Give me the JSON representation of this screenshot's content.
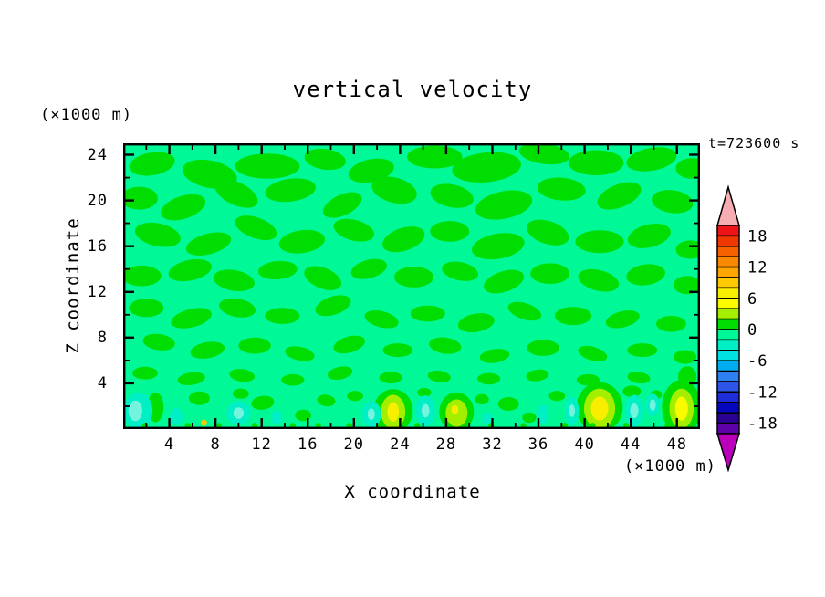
{
  "chart_data": {
    "type": "filled_contour",
    "title": "vertical velocity",
    "time_label": "t=723600 s",
    "xlabel": "X coordinate",
    "ylabel": "Z coordinate",
    "x_unit": "(×1000 m)",
    "y_unit": "(×1000 m)",
    "xlim": [
      0,
      50
    ],
    "ylim": [
      0,
      25
    ],
    "x_ticks_major": [
      4,
      8,
      12,
      16,
      20,
      24,
      28,
      32,
      36,
      40,
      44,
      48
    ],
    "x_ticks_minor": [
      2,
      6,
      10,
      14,
      18,
      22,
      26,
      30,
      34,
      38,
      42,
      46
    ],
    "y_ticks_major": [
      4,
      8,
      12,
      16,
      20,
      24
    ],
    "y_ticks_minor": [
      2,
      6,
      10,
      14,
      18,
      22
    ],
    "contour_interval": 2,
    "colorbar": {
      "labels": [
        "18",
        "12",
        "6",
        "0",
        "-6",
        "-12",
        "-18"
      ],
      "label_boundary_cells": [
        1,
        4,
        7,
        10,
        13,
        16,
        19
      ],
      "over_color": "#F6ACB0",
      "under_color": "#BB00BB",
      "cells_top_to_bottom": [
        {
          "range": [
            18,
            20
          ],
          "color": "#EE1316"
        },
        {
          "range": [
            16,
            18
          ],
          "color": "#F13700"
        },
        {
          "range": [
            14,
            16
          ],
          "color": "#F66100"
        },
        {
          "range": [
            12,
            14
          ],
          "color": "#FB8900"
        },
        {
          "range": [
            10,
            12
          ],
          "color": "#FFA500"
        },
        {
          "range": [
            8,
            10
          ],
          "color": "#FFC900"
        },
        {
          "range": [
            6,
            8
          ],
          "color": "#F8EE00"
        },
        {
          "range": [
            4,
            6
          ],
          "color": "#FBFB00"
        },
        {
          "range": [
            2,
            4
          ],
          "color": "#A4EE00"
        },
        {
          "range": [
            0,
            2
          ],
          "color": "#00DD00"
        },
        {
          "range": [
            -2,
            0
          ],
          "color": "#00F896"
        },
        {
          "range": [
            -4,
            -2
          ],
          "color": "#00EFC4"
        },
        {
          "range": [
            -6,
            -4
          ],
          "color": "#00E2E2"
        },
        {
          "range": [
            -8,
            -6
          ],
          "color": "#00ADF3"
        },
        {
          "range": [
            -10,
            -8
          ],
          "color": "#2E80F0"
        },
        {
          "range": [
            -12,
            -10
          ],
          "color": "#2E55E8"
        },
        {
          "range": [
            -14,
            -12
          ],
          "color": "#1F2CD9"
        },
        {
          "range": [
            -16,
            -14
          ],
          "color": "#0606BF"
        },
        {
          "range": [
            -18,
            -16
          ],
          "color": "#2B0193"
        },
        {
          "range": [
            -20,
            -18
          ],
          "color": "#5D02A9"
        }
      ]
    },
    "notable_features": {
      "background_value_range": [
        -2,
        0
      ],
      "positive_patch_value_range": [
        0,
        2
      ],
      "updraft_cores_near_surface_x": [
        7.0,
        23.4,
        28.9,
        41.3,
        48.4
      ],
      "updraft_peak_value_range": [
        4,
        8
      ],
      "downdraft_cores_near_surface_x": [
        1.3,
        10.0,
        21.5,
        26.2,
        38.9,
        44.3,
        45.9
      ],
      "downdraft_peak_value_range": [
        -6,
        -2
      ]
    },
    "field": {
      "background_color": "#00F896",
      "positive_color": "#00DD00",
      "blobs": [
        [
          2.5,
          23.2,
          2.0,
          1.0,
          -10
        ],
        [
          7.5,
          22.3,
          2.4,
          1.2,
          12
        ],
        [
          12.5,
          23.0,
          2.8,
          1.1,
          0
        ],
        [
          17.5,
          23.6,
          1.8,
          0.9,
          8
        ],
        [
          21.5,
          22.6,
          2.0,
          1.0,
          -12
        ],
        [
          27.0,
          23.8,
          2.4,
          1.0,
          0
        ],
        [
          31.5,
          22.9,
          3.0,
          1.3,
          -6
        ],
        [
          36.5,
          24.1,
          2.2,
          0.9,
          8
        ],
        [
          41.0,
          23.3,
          2.4,
          1.1,
          0
        ],
        [
          45.8,
          23.6,
          2.2,
          1.0,
          -10
        ],
        [
          49.3,
          22.8,
          1.4,
          0.9,
          0
        ],
        [
          1.4,
          20.2,
          1.6,
          1.0,
          0
        ],
        [
          5.2,
          19.4,
          2.0,
          1.0,
          -18
        ],
        [
          9.8,
          20.6,
          2.0,
          1.0,
          25
        ],
        [
          14.5,
          20.9,
          2.2,
          1.0,
          -8
        ],
        [
          19.0,
          19.6,
          1.8,
          0.9,
          -25
        ],
        [
          23.5,
          20.9,
          2.0,
          1.1,
          15
        ],
        [
          28.5,
          20.4,
          1.9,
          1.0,
          12
        ],
        [
          33.0,
          19.6,
          2.5,
          1.2,
          -12
        ],
        [
          38.0,
          21.0,
          2.1,
          1.0,
          5
        ],
        [
          43.0,
          20.4,
          2.0,
          1.0,
          -22
        ],
        [
          47.6,
          19.9,
          1.8,
          1.0,
          8
        ],
        [
          3.0,
          17.0,
          2.0,
          1.0,
          12
        ],
        [
          7.4,
          16.2,
          2.0,
          0.9,
          -15
        ],
        [
          11.5,
          17.6,
          1.9,
          0.9,
          20
        ],
        [
          15.5,
          16.4,
          2.0,
          1.0,
          -8
        ],
        [
          20.0,
          17.4,
          1.8,
          0.9,
          15
        ],
        [
          24.3,
          16.6,
          1.9,
          1.0,
          -18
        ],
        [
          28.3,
          17.3,
          1.7,
          0.9,
          0
        ],
        [
          32.5,
          16.0,
          2.3,
          1.1,
          -10
        ],
        [
          36.8,
          17.2,
          1.9,
          1.0,
          18
        ],
        [
          41.3,
          16.4,
          2.1,
          1.0,
          0
        ],
        [
          45.6,
          16.9,
          1.9,
          1.0,
          -14
        ],
        [
          49.2,
          15.7,
          1.3,
          0.8,
          0
        ],
        [
          1.6,
          13.4,
          1.7,
          0.9,
          0
        ],
        [
          5.8,
          13.9,
          1.9,
          0.9,
          -12
        ],
        [
          9.6,
          13.0,
          1.8,
          0.9,
          10
        ],
        [
          13.4,
          13.9,
          1.7,
          0.8,
          -5
        ],
        [
          17.3,
          13.2,
          1.7,
          0.9,
          22
        ],
        [
          21.3,
          14.0,
          1.6,
          0.8,
          -15
        ],
        [
          25.2,
          13.3,
          1.7,
          0.9,
          0
        ],
        [
          29.2,
          13.8,
          1.6,
          0.8,
          12
        ],
        [
          33.0,
          12.9,
          1.8,
          0.9,
          -18
        ],
        [
          37.0,
          13.6,
          1.7,
          0.9,
          0
        ],
        [
          41.2,
          13.0,
          1.8,
          0.9,
          14
        ],
        [
          45.3,
          13.5,
          1.7,
          0.9,
          -8
        ],
        [
          48.9,
          12.6,
          1.2,
          0.8,
          0
        ],
        [
          2.0,
          10.6,
          1.5,
          0.8,
          0
        ],
        [
          5.9,
          9.7,
          1.8,
          0.8,
          -14
        ],
        [
          9.9,
          10.6,
          1.6,
          0.8,
          10
        ],
        [
          13.8,
          9.9,
          1.5,
          0.7,
          0
        ],
        [
          18.2,
          10.8,
          1.6,
          0.8,
          -18
        ],
        [
          22.4,
          9.6,
          1.5,
          0.7,
          14
        ],
        [
          26.4,
          10.1,
          1.5,
          0.7,
          0
        ],
        [
          30.6,
          9.3,
          1.6,
          0.8,
          -10
        ],
        [
          34.8,
          10.3,
          1.5,
          0.7,
          18
        ],
        [
          39.0,
          9.9,
          1.6,
          0.8,
          0
        ],
        [
          43.3,
          9.6,
          1.5,
          0.7,
          -14
        ],
        [
          47.5,
          9.2,
          1.3,
          0.7,
          0
        ],
        [
          3.1,
          7.6,
          1.4,
          0.7,
          8
        ],
        [
          7.3,
          6.9,
          1.5,
          0.7,
          -10
        ],
        [
          11.4,
          7.3,
          1.4,
          0.7,
          0
        ],
        [
          15.3,
          6.6,
          1.3,
          0.6,
          12
        ],
        [
          19.6,
          7.4,
          1.4,
          0.7,
          -16
        ],
        [
          23.8,
          6.9,
          1.3,
          0.6,
          0
        ],
        [
          27.9,
          7.3,
          1.4,
          0.7,
          8
        ],
        [
          32.2,
          6.4,
          1.3,
          0.6,
          -8
        ],
        [
          36.4,
          7.1,
          1.4,
          0.7,
          0
        ],
        [
          40.7,
          6.6,
          1.3,
          0.6,
          16
        ],
        [
          45.0,
          6.9,
          1.3,
          0.6,
          0
        ],
        [
          48.7,
          6.3,
          1.0,
          0.6,
          0
        ],
        [
          1.9,
          4.9,
          1.1,
          0.55,
          0
        ],
        [
          5.9,
          4.4,
          1.2,
          0.55,
          -8
        ],
        [
          10.3,
          4.7,
          1.1,
          0.55,
          8
        ],
        [
          14.7,
          4.3,
          1.0,
          0.5,
          0
        ],
        [
          18.8,
          4.9,
          1.1,
          0.55,
          -12
        ],
        [
          23.2,
          4.5,
          1.0,
          0.5,
          0
        ],
        [
          27.4,
          4.6,
          1.0,
          0.5,
          8
        ],
        [
          31.7,
          4.4,
          1.0,
          0.5,
          0
        ],
        [
          35.9,
          4.7,
          1.0,
          0.5,
          -8
        ],
        [
          40.3,
          4.3,
          1.0,
          0.5,
          0
        ],
        [
          44.7,
          4.5,
          1.0,
          0.5,
          8
        ],
        [
          48.9,
          4.6,
          0.8,
          0.9,
          0
        ],
        [
          2.8,
          1.9,
          0.7,
          1.3,
          0
        ],
        [
          6.6,
          2.7,
          0.9,
          0.6,
          0
        ],
        [
          10.2,
          3.1,
          0.7,
          0.45,
          0
        ],
        [
          12.1,
          2.3,
          1.0,
          0.6,
          -8
        ],
        [
          15.6,
          1.2,
          0.7,
          0.5,
          0
        ],
        [
          17.6,
          2.5,
          0.8,
          0.5,
          8
        ],
        [
          20.1,
          2.9,
          0.7,
          0.45,
          0
        ],
        [
          23.4,
          1.6,
          1.7,
          1.9,
          0
        ],
        [
          26.1,
          3.2,
          0.6,
          0.4,
          0
        ],
        [
          28.9,
          1.5,
          1.5,
          1.7,
          0
        ],
        [
          31.1,
          2.6,
          0.6,
          0.45,
          0
        ],
        [
          33.4,
          2.2,
          0.9,
          0.6,
          0
        ],
        [
          35.2,
          1.0,
          0.6,
          0.45,
          0
        ],
        [
          37.6,
          2.9,
          0.7,
          0.45,
          0
        ],
        [
          41.3,
          1.9,
          2.0,
          2.2,
          0
        ],
        [
          44.1,
          3.3,
          0.8,
          0.5,
          0
        ],
        [
          46.2,
          3.0,
          0.5,
          0.4,
          0
        ],
        [
          48.4,
          1.9,
          1.7,
          2.4,
          0
        ]
      ],
      "spots": [
        {
          "x": 1.3,
          "z": 1.6,
          "layers": [
            {
              "rx": 1.25,
              "ry": 1.6,
              "color": "#00EFC4"
            },
            {
              "dx": -0.25,
              "rx": 0.6,
              "ry": 0.9,
              "color": "#74F3DF"
            }
          ]
        },
        {
          "x": 4.6,
          "z": 1.1,
          "layers": [
            {
              "rx": 0.55,
              "ry": 0.75,
              "color": "#00EFC4"
            }
          ]
        },
        {
          "x": 10.0,
          "z": 1.4,
          "layers": [
            {
              "rx": 1.05,
              "ry": 1.05,
              "color": "#00EFC4"
            },
            {
              "rx": 0.45,
              "ry": 0.5,
              "color": "#74F3DF"
            }
          ]
        },
        {
          "x": 13.3,
          "z": 1.0,
          "layers": [
            {
              "rx": 0.5,
              "ry": 0.6,
              "color": "#00EFC4"
            }
          ]
        },
        {
          "x": 21.5,
          "z": 1.3,
          "layers": [
            {
              "rx": 0.85,
              "ry": 1.15,
              "color": "#00EFC4"
            },
            {
              "rx": 0.32,
              "ry": 0.5,
              "color": "#74F3DF"
            }
          ]
        },
        {
          "x": 26.2,
          "z": 1.6,
          "layers": [
            {
              "rx": 0.85,
              "ry": 1.35,
              "color": "#00EFC4"
            },
            {
              "rx": 0.35,
              "ry": 0.6,
              "color": "#74F3DF"
            }
          ]
        },
        {
          "x": 31.6,
          "z": 0.9,
          "layers": [
            {
              "rx": 0.5,
              "ry": 0.55,
              "color": "#00EFC4"
            }
          ]
        },
        {
          "x": 36.4,
          "z": 1.3,
          "layers": [
            {
              "rx": 0.5,
              "ry": 0.85,
              "color": "#00EFC4"
            }
          ]
        },
        {
          "x": 38.9,
          "z": 1.6,
          "layers": [
            {
              "rx": 0.6,
              "ry": 1.25,
              "color": "#00EFC4"
            },
            {
              "rx": 0.26,
              "ry": 0.55,
              "color": "#74F3DF"
            }
          ]
        },
        {
          "x": 44.3,
          "z": 1.6,
          "layers": [
            {
              "rx": 0.8,
              "ry": 1.4,
              "color": "#00EFC4"
            },
            {
              "rx": 0.36,
              "ry": 0.65,
              "color": "#74F3DF"
            }
          ]
        },
        {
          "x": 45.9,
          "z": 2.1,
          "layers": [
            {
              "rx": 0.6,
              "ry": 1.0,
              "color": "#00EFC4"
            },
            {
              "rx": 0.27,
              "ry": 0.5,
              "color": "#74F3DF"
            }
          ]
        },
        {
          "x": 23.4,
          "z": 1.5,
          "layers": [
            {
              "rx": 1.05,
              "ry": 1.5,
              "color": "#A4EE00"
            },
            {
              "rx": 0.5,
              "ry": 0.85,
              "color": "#F8EE00"
            }
          ]
        },
        {
          "x": 28.9,
          "z": 1.4,
          "layers": [
            {
              "rx": 0.95,
              "ry": 1.2,
              "color": "#A4EE00"
            },
            {
              "dx": -0.15,
              "dy": 0.3,
              "rx": 0.3,
              "ry": 0.4,
              "color": "#F8EE00"
            }
          ]
        },
        {
          "x": 41.3,
          "z": 1.8,
          "layers": [
            {
              "rx": 1.35,
              "ry": 1.75,
              "color": "#A4EE00"
            },
            {
              "rx": 0.75,
              "ry": 1.05,
              "color": "#F8EE00"
            }
          ]
        },
        {
          "x": 48.4,
          "z": 1.8,
          "layers": [
            {
              "rx": 1.05,
              "ry": 1.75,
              "color": "#A4EE00"
            },
            {
              "rx": 0.55,
              "ry": 1.05,
              "color": "#FBFB00"
            }
          ]
        },
        {
          "x": 7.0,
          "z": 0.55,
          "layers": [
            {
              "rx": 0.25,
              "ry": 0.28,
              "color": "#FFC900"
            }
          ]
        }
      ],
      "surface_specks": [
        1.9,
        5.6,
        8.3,
        11.4,
        14.7,
        16.9,
        19.6,
        22.3,
        25.5,
        28.2,
        31.9,
        34.7,
        38.3,
        40.7,
        43.6,
        47.2
      ]
    }
  }
}
